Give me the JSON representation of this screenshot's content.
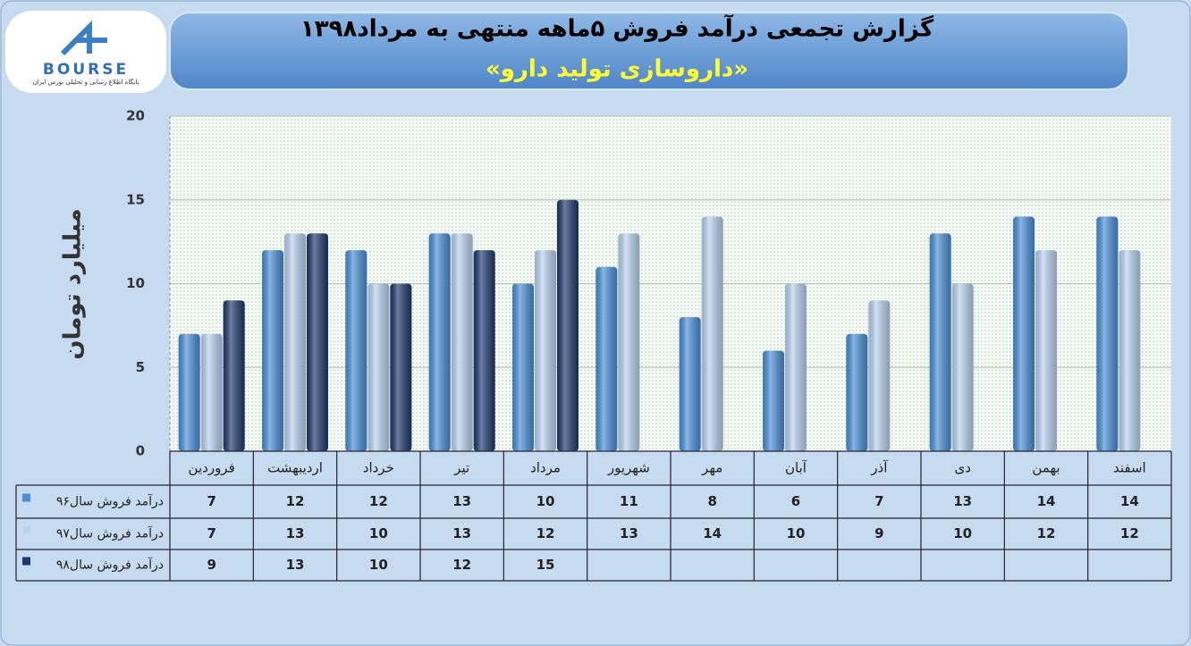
{
  "logo": {
    "text": "BOURSE",
    "subtext": "پایگاه اطلاع رسانی و تحلیلی بورس ایران"
  },
  "chart_data": {
    "type": "bar",
    "title": "گزارش تجمعی درآمد فروش ۵ماهه منتهی به مرداد۱۳۹۸",
    "subtitle": "«داروسازی تولید دارو»",
    "y_label": "میلیارد تومان",
    "categories": [
      "فروردین",
      "اردیبهشت",
      "خرداد",
      "تیر",
      "مرداد",
      "شهریور",
      "مهر",
      "آبان",
      "آذر",
      "دی",
      "بهمن",
      "اسفند"
    ],
    "series": [
      {
        "name": "درآمد فروش سال۹۶",
        "color": "#4a8fd8",
        "values": [
          7,
          12,
          12,
          13,
          10,
          11,
          8,
          6,
          7,
          13,
          14,
          14
        ]
      },
      {
        "name": "درآمد فروش سال۹۷",
        "color": "#b9d3f0",
        "values": [
          7,
          13,
          10,
          13,
          12,
          13,
          14,
          10,
          9,
          10,
          12,
          12
        ]
      },
      {
        "name": "درآمد فروش سال۹۸",
        "color": "#1e3a6c",
        "values": [
          9,
          13,
          10,
          12,
          15,
          null,
          null,
          null,
          null,
          null,
          null,
          null
        ]
      }
    ],
    "ylim": [
      0,
      20
    ],
    "yticks": [
      0,
      5,
      10,
      15,
      20
    ],
    "grid": true
  }
}
